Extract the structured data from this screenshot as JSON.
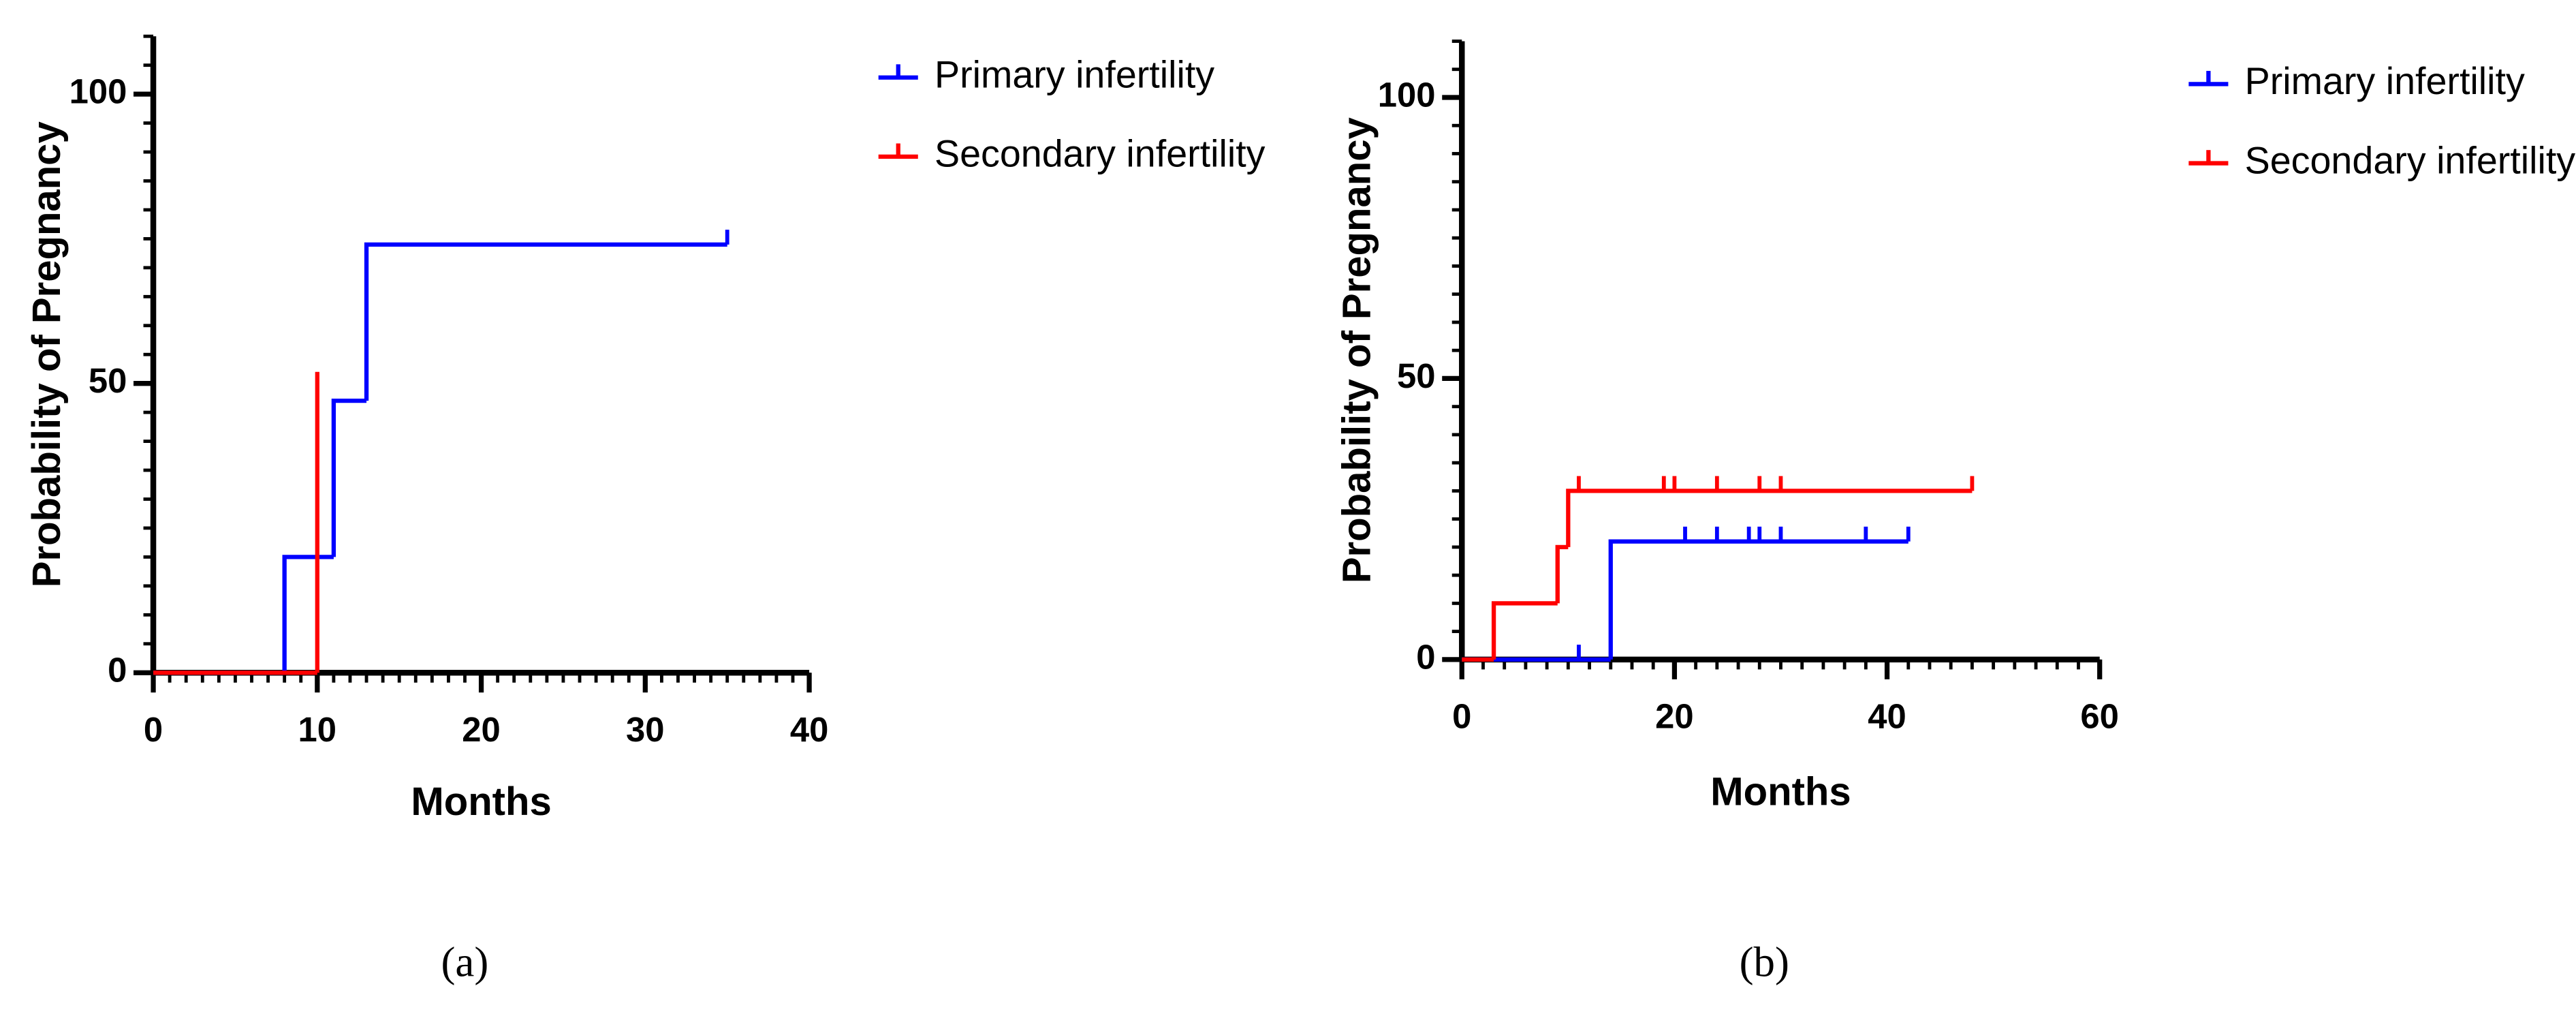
{
  "chart_data": [
    {
      "type": "step",
      "panel_label": "(a)",
      "x_label": "Months",
      "y_label": "Probability of Pregnancy",
      "xlim": [
        0,
        40
      ],
      "xticks": [
        0,
        10,
        20,
        30,
        40
      ],
      "ylim": [
        0,
        110
      ],
      "yticks": [
        0,
        50,
        100
      ],
      "minor_xstep": 1,
      "minor_ystep": 5,
      "legend": "right",
      "series": [
        {
          "name": "Primary infertility",
          "color": "#0000ff",
          "x": [
            0,
            8,
            11,
            13,
            35
          ],
          "values": [
            0,
            20,
            47,
            74,
            74
          ],
          "censored_x": [
            35
          ],
          "censored_values": [
            74
          ]
        },
        {
          "name": "Secondary infertility",
          "color": "#ff0000",
          "x": [
            0,
            10
          ],
          "values": [
            0,
            52
          ],
          "censored_x": [],
          "censored_values": []
        }
      ]
    },
    {
      "type": "step",
      "panel_label": "(b)",
      "x_label": "Months",
      "y_label": "Probability of Pregnancy",
      "xlim": [
        0,
        60
      ],
      "xticks": [
        0,
        20,
        40,
        60
      ],
      "ylim": [
        0,
        110
      ],
      "yticks": [
        0,
        50,
        100
      ],
      "minor_xstep": 2,
      "minor_ystep": 5,
      "legend": "right",
      "series": [
        {
          "name": "Primary infertility",
          "color": "#0000ff",
          "x": [
            0,
            14,
            42
          ],
          "values": [
            0,
            21,
            21
          ],
          "censored_x": [
            11,
            21,
            24,
            27,
            28,
            30,
            38,
            42
          ],
          "censored_values": [
            0,
            21,
            21,
            21,
            21,
            21,
            21,
            21
          ]
        },
        {
          "name": "Secondary infertility",
          "color": "#ff0000",
          "x": [
            0,
            3,
            9,
            10,
            48
          ],
          "values": [
            0,
            10,
            20,
            30,
            30
          ],
          "censored_x": [
            11,
            19,
            20,
            24,
            28,
            30,
            48
          ],
          "censored_values": [
            30,
            30,
            30,
            30,
            30,
            30,
            30
          ]
        }
      ]
    }
  ]
}
